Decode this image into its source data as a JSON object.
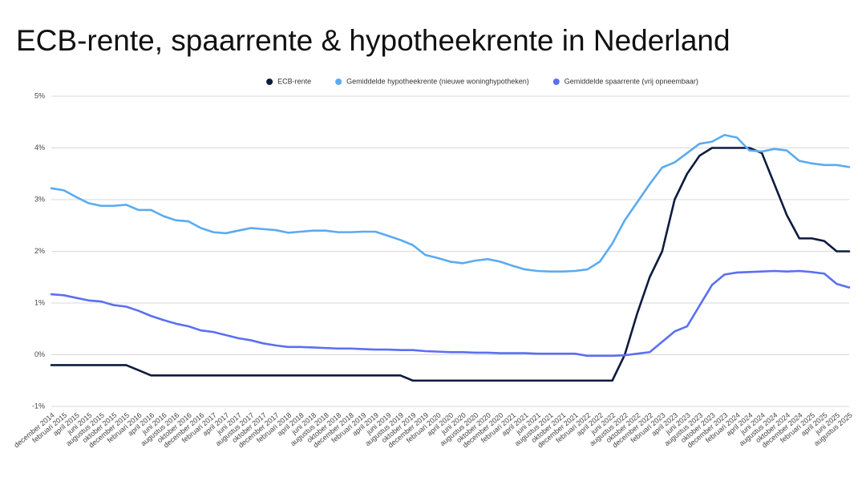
{
  "chart_data": {
    "type": "line",
    "title": "ECB-rente, spaarrente & hypotheekrente in Nederland",
    "categories": [
      "december 2014",
      "februari 2015",
      "april 2015",
      "juni 2015",
      "augustus 2015",
      "oktober 2015",
      "december 2015",
      "februari 2016",
      "april 2016",
      "juni 2016",
      "augustus 2016",
      "oktober 2016",
      "december 2016",
      "februari 2017",
      "april 2017",
      "juni 2017",
      "augustus 2017",
      "oktober 2017",
      "december 2017",
      "februari 2018",
      "april 2018",
      "juni 2018",
      "augustus 2018",
      "oktober 2018",
      "december 2018",
      "februari 2019",
      "april 2019",
      "juni 2019",
      "augustus 2019",
      "oktober 2019",
      "december 2019",
      "februari 2020",
      "april 2020",
      "juni 2020",
      "augustus 2020",
      "oktober 2020",
      "december 2020",
      "februari 2021",
      "april 2021",
      "juni 2021",
      "augustus 2021",
      "oktober 2021",
      "december 2021",
      "februari 2022",
      "april 2022",
      "juni 2022",
      "augustus 2022",
      "oktober 2022",
      "december 2022",
      "februari 2023",
      "april 2023",
      "juni 2023",
      "augustus 2023",
      "oktober 2023",
      "december 2023",
      "februari 2024",
      "april 2024",
      "juni 2024",
      "augustus 2024",
      "oktober 2024",
      "december 2024",
      "februari 2025",
      "april 2025",
      "juni 2025",
      "augustus 2025"
    ],
    "series": [
      {
        "name": "ECB-rente",
        "color": "#0d1b3e",
        "values": [
          -0.2,
          -0.2,
          -0.2,
          -0.2,
          -0.2,
          -0.2,
          -0.2,
          -0.3,
          -0.4,
          -0.4,
          -0.4,
          -0.4,
          -0.4,
          -0.4,
          -0.4,
          -0.4,
          -0.4,
          -0.4,
          -0.4,
          -0.4,
          -0.4,
          -0.4,
          -0.4,
          -0.4,
          -0.4,
          -0.4,
          -0.4,
          -0.4,
          -0.4,
          -0.5,
          -0.5,
          -0.5,
          -0.5,
          -0.5,
          -0.5,
          -0.5,
          -0.5,
          -0.5,
          -0.5,
          -0.5,
          -0.5,
          -0.5,
          -0.5,
          -0.5,
          -0.5,
          -0.5,
          0.0,
          0.8,
          1.5,
          2.0,
          3.0,
          3.5,
          3.85,
          4.0,
          4.0,
          4.0,
          4.0,
          3.9,
          3.3,
          2.7,
          2.25,
          2.25,
          2.2,
          2.0,
          2.0
        ]
      },
      {
        "name": "Gemiddelde hypotheekrente (nieuwe woninghypotheken)",
        "color": "#5aabf0",
        "values": [
          3.22,
          3.18,
          3.05,
          2.93,
          2.88,
          2.88,
          2.9,
          2.8,
          2.8,
          2.68,
          2.6,
          2.58,
          2.45,
          2.37,
          2.35,
          2.4,
          2.45,
          2.43,
          2.41,
          2.36,
          2.38,
          2.4,
          2.4,
          2.37,
          2.37,
          2.38,
          2.38,
          2.3,
          2.22,
          2.12,
          1.93,
          1.87,
          1.8,
          1.77,
          1.82,
          1.85,
          1.8,
          1.72,
          1.65,
          1.62,
          1.61,
          1.61,
          1.62,
          1.65,
          1.8,
          2.15,
          2.6,
          2.95,
          3.3,
          3.62,
          3.72,
          3.9,
          4.08,
          4.12,
          4.25,
          4.2,
          3.95,
          3.93,
          3.98,
          3.95,
          3.75,
          3.7,
          3.67,
          3.67,
          3.63
        ]
      },
      {
        "name": "Gemiddelde spaarrente (vrij opneembaar)",
        "color": "#5b6ff2",
        "values": [
          1.17,
          1.15,
          1.1,
          1.05,
          1.03,
          0.96,
          0.93,
          0.85,
          0.75,
          0.67,
          0.6,
          0.55,
          0.47,
          0.44,
          0.38,
          0.32,
          0.28,
          0.22,
          0.18,
          0.15,
          0.15,
          0.14,
          0.13,
          0.12,
          0.12,
          0.11,
          0.1,
          0.1,
          0.09,
          0.09,
          0.07,
          0.06,
          0.05,
          0.05,
          0.04,
          0.04,
          0.03,
          0.03,
          0.03,
          0.02,
          0.02,
          0.02,
          0.02,
          -0.02,
          -0.02,
          -0.02,
          -0.01,
          0.02,
          0.05,
          0.25,
          0.45,
          0.55,
          0.95,
          1.35,
          1.55,
          1.59,
          1.6,
          1.61,
          1.62,
          1.61,
          1.62,
          1.6,
          1.57,
          1.37,
          1.3
        ]
      }
    ],
    "ylim": [
      -1,
      5
    ],
    "yticks": [
      {
        "value": -1,
        "label": "-1%"
      },
      {
        "value": 0,
        "label": "0%"
      },
      {
        "value": 1,
        "label": "1%"
      },
      {
        "value": 2,
        "label": "2%"
      },
      {
        "value": 3,
        "label": "3%"
      },
      {
        "value": 4,
        "label": "4%"
      },
      {
        "value": 5,
        "label": "5%"
      }
    ],
    "grid": true
  }
}
